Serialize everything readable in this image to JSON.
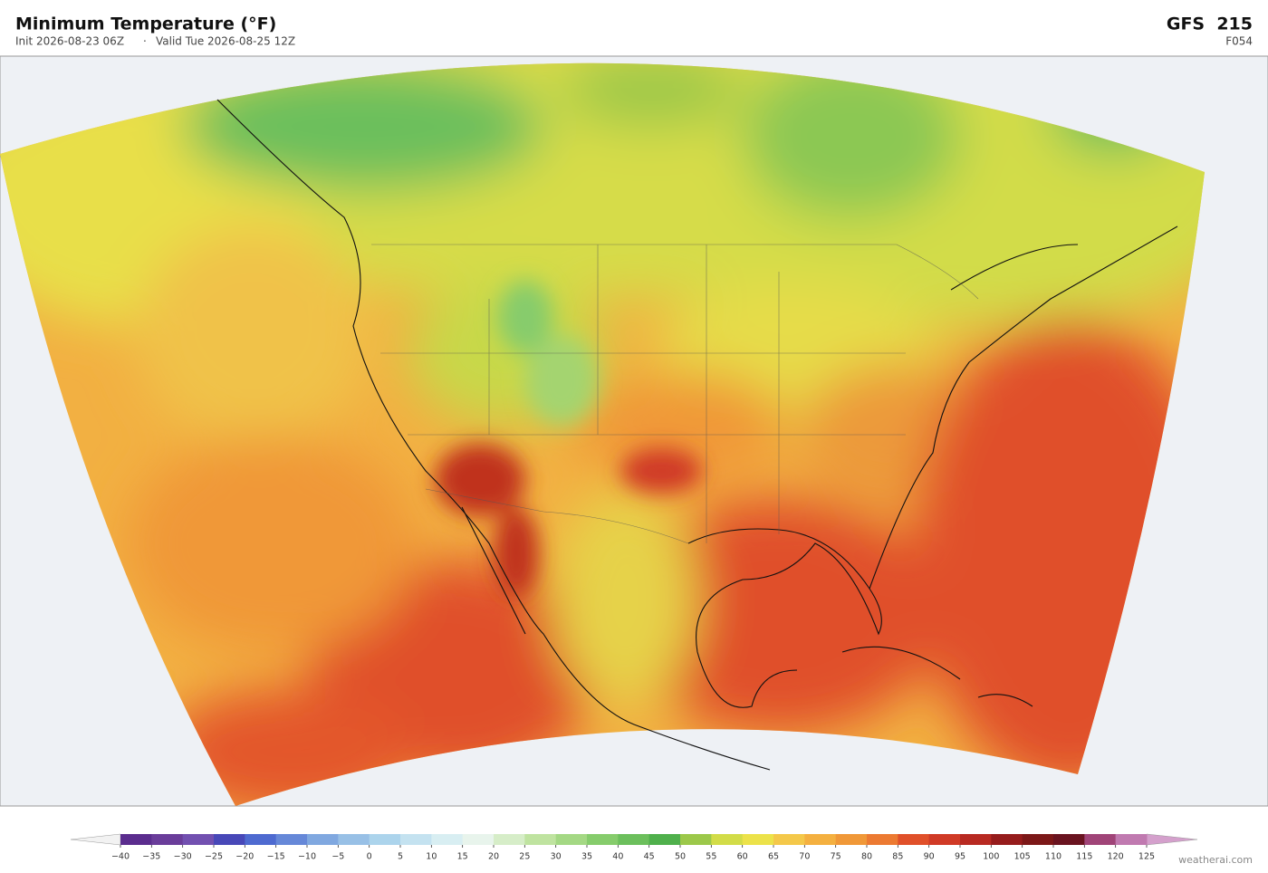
{
  "header": {
    "title": "Minimum Temperature  (°F)",
    "init": "Init 2026-08-23 06Z",
    "separator": "·",
    "valid": "Valid Tue 2026-08-25 12Z",
    "model": "GFS  215",
    "forecast_hour": "F054"
  },
  "colorbar": {
    "ticks": [
      {
        "value": -40,
        "label": "−40"
      },
      {
        "value": -35,
        "label": "−35"
      },
      {
        "value": -30,
        "label": "−30"
      },
      {
        "value": -25,
        "label": "−25"
      },
      {
        "value": -20,
        "label": "−20"
      },
      {
        "value": -15,
        "label": "−15"
      },
      {
        "value": -10,
        "label": "−10"
      },
      {
        "value": -5,
        "label": "−5"
      },
      0,
      5,
      10,
      15,
      20,
      25,
      30,
      35,
      40,
      45,
      50,
      55,
      60,
      65,
      70,
      75,
      80,
      85,
      90,
      95,
      100,
      105,
      110,
      115,
      120,
      125
    ],
    "colors": [
      "#5b2d8e",
      "#6a3d9a",
      "#7250b0",
      "#4848b8",
      "#4e6ad0",
      "#6688d8",
      "#80a8e0",
      "#98c0e6",
      "#acd4ec",
      "#c4e2f0",
      "#d8eef2",
      "#e8f4ec",
      "#d6edc8",
      "#bfe3a0",
      "#a4d884",
      "#86cc6c",
      "#6cbf5c",
      "#4fb04c",
      "#9cc84a",
      "#d2dc48",
      "#ece24a",
      "#f4c84a",
      "#f4b040",
      "#f09838",
      "#ec7a32",
      "#e0502a",
      "#d03a26",
      "#b82a22",
      "#961c1c",
      "#7c1818",
      "#6a1420",
      "#a04478",
      "#c07ab0"
    ],
    "under_color": "#f2f2f2",
    "over_color": "#d4a0cc"
  },
  "footer": {
    "credit": "weatherai.com"
  }
}
